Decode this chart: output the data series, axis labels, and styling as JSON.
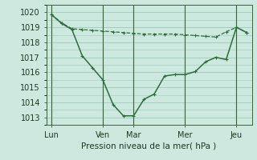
{
  "bg_color": "#cce8df",
  "grid_color": "#99ccbb",
  "line_color": "#2d6e3a",
  "ylabel": "Pression niveau de la mer( hPa )",
  "ylim": [
    1012.5,
    1020.5
  ],
  "yticks": [
    1013,
    1014,
    1015,
    1016,
    1017,
    1018,
    1019,
    1020
  ],
  "xtick_labels": [
    "Lun",
    "Ven",
    "Mar",
    "Mer",
    "Jeu"
  ],
  "xtick_pos": [
    0.5,
    5.5,
    8.5,
    13.5,
    18.5
  ],
  "vlines_x": [
    0.5,
    5.5,
    8.5,
    13.5,
    18.5
  ],
  "total_points": 20,
  "series1_x": [
    0.5,
    1.5,
    2.5,
    3.5,
    4.5,
    5.5,
    6.5,
    7.5,
    8.5,
    9.5,
    10.5,
    11.5,
    12.5,
    13.5,
    14.5,
    15.5,
    16.5,
    17.5,
    18.5,
    19.5
  ],
  "series1_y": [
    1019.85,
    1019.3,
    1018.9,
    1018.85,
    1018.8,
    1018.75,
    1018.7,
    1018.65,
    1018.6,
    1018.55,
    1018.55,
    1018.55,
    1018.55,
    1018.5,
    1018.45,
    1018.4,
    1018.35,
    1018.7,
    1019.0,
    1018.65
  ],
  "series2_x": [
    0.5,
    1.5,
    2.5,
    3.5,
    4.5,
    5.5,
    6.5,
    7.5,
    8.5,
    9.5,
    10.5,
    11.5,
    12.5,
    13.5,
    14.5,
    15.5,
    16.5,
    17.5,
    18.5,
    19.5
  ],
  "series2_y": [
    1019.85,
    1019.25,
    1018.85,
    1017.1,
    1016.3,
    1015.5,
    1013.85,
    1013.1,
    1013.1,
    1014.2,
    1014.55,
    1015.75,
    1015.85,
    1015.85,
    1016.05,
    1016.7,
    1017.0,
    1016.85,
    1019.0,
    1018.65
  ],
  "xlim": [
    0,
    20
  ],
  "markersize": 3.5,
  "linewidth1": 0.9,
  "linewidth2": 1.1
}
